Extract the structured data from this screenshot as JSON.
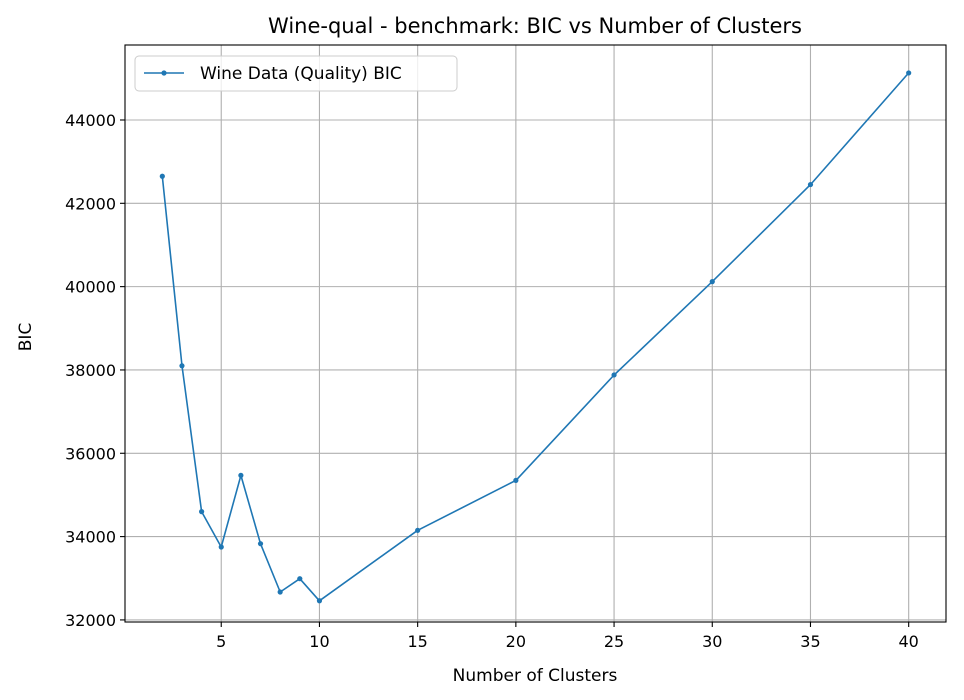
{
  "chart_data": {
    "type": "line",
    "title": "Wine-qual - benchmark: BIC vs Number of Clusters",
    "xlabel": "Number of Clusters",
    "ylabel": "BIC",
    "xlim": [
      0.1,
      41.9
    ],
    "ylim": [
      31950,
      45800
    ],
    "xticks": [
      5,
      10,
      15,
      20,
      25,
      30,
      35,
      40
    ],
    "yticks": [
      32000,
      34000,
      36000,
      38000,
      40000,
      42000,
      44000
    ],
    "grid": true,
    "legend_position": "top-left",
    "series": [
      {
        "name": "Wine Data (Quality) BIC",
        "color": "#1f77b4",
        "marker": "circle",
        "x": [
          2,
          3,
          4,
          5,
          6,
          7,
          8,
          9,
          10,
          15,
          20,
          25,
          30,
          35,
          40
        ],
        "y": [
          42650,
          38100,
          34600,
          33750,
          35470,
          33830,
          32670,
          32990,
          32460,
          34150,
          35350,
          37880,
          40120,
          42450,
          45130
        ]
      }
    ]
  }
}
